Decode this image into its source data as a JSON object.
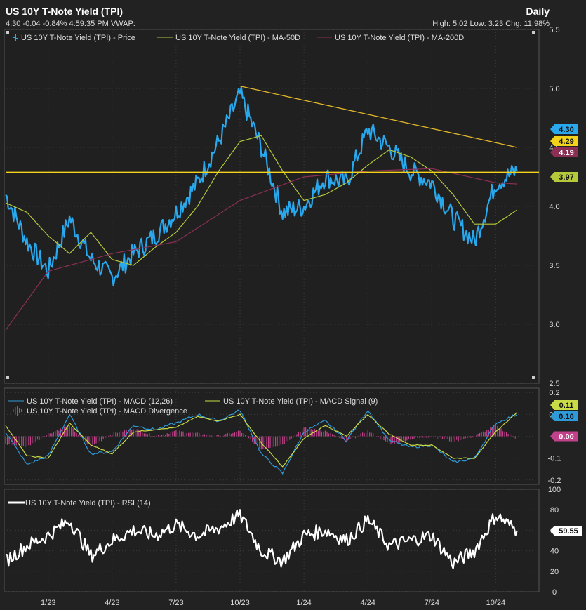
{
  "header": {
    "title": "US 10Y T-Note Yield (TPI)",
    "period": "Daily",
    "quote": "4.30 -0.04 -0.84% 4:59:35 PM VWAP:",
    "high_low_chg": "High: 5.02 Low: 3.23 Chg: 11.98%"
  },
  "colors": {
    "background": "#222222",
    "price": "#29a8ee",
    "ma50": "#b5c93b",
    "ma200": "#8b2f55",
    "trendline": "#e3b82a",
    "horizontal": "#f2d21b",
    "macd": "#2f9ad8",
    "macd_signal": "#c9db46",
    "macd_divergence": "#c2418b",
    "rsi": "#ffffff"
  },
  "chart_data": [
    {
      "type": "line",
      "name": "price-panel",
      "title": "US 10Y T-Note Yield (TPI)",
      "legend": [
        "US 10Y T-Note Yield (TPI) - Price",
        "US 10Y T-Note Yield (TPI) - MA-50D",
        "US 10Y T-Note Yield (TPI) - MA-200D"
      ],
      "x_ticks": [
        "1/23",
        "4/23",
        "7/23",
        "10/23",
        "1/24",
        "4/24",
        "7/24",
        "10/24"
      ],
      "y_ticks": [
        "5.5",
        "5.0",
        "4.5",
        "4.0",
        "3.5",
        "3.0",
        "2.5"
      ],
      "ylim": [
        2.5,
        5.5
      ],
      "series": [
        {
          "name": "US 10Y T-Note Yield (TPI) - Price",
          "points": [
            [
              "11/22",
              4.1
            ],
            [
              "12/22",
              3.7
            ],
            [
              "1/23",
              3.45
            ],
            [
              "2/23",
              3.9
            ],
            [
              "3/23",
              3.55
            ],
            [
              "4/23",
              3.4
            ],
            [
              "5/23",
              3.6
            ],
            [
              "6/23",
              3.75
            ],
            [
              "7/23",
              3.95
            ],
            [
              "8/23",
              4.2
            ],
            [
              "9/23",
              4.55
            ],
            [
              "10/23",
              4.95
            ],
            [
              "11/23",
              4.5
            ],
            [
              "12/23",
              3.95
            ],
            [
              "1/24",
              4.0
            ],
            [
              "2/24",
              4.25
            ],
            [
              "3/24",
              4.2
            ],
            [
              "4/24",
              4.65
            ],
            [
              "5/24",
              4.5
            ],
            [
              "6/24",
              4.3
            ],
            [
              "7/24",
              4.2
            ],
            [
              "8/24",
              3.9
            ],
            [
              "9/24",
              3.7
            ],
            [
              "10/24",
              4.2
            ],
            [
              "11/24",
              4.3
            ]
          ]
        },
        {
          "name": "US 10Y T-Note Yield (TPI) - MA-50D",
          "points": [
            [
              "11/22",
              4.03
            ],
            [
              "12/22",
              3.95
            ],
            [
              "1/23",
              3.75
            ],
            [
              "2/23",
              3.6
            ],
            [
              "3/23",
              3.78
            ],
            [
              "4/23",
              3.55
            ],
            [
              "5/23",
              3.5
            ],
            [
              "6/23",
              3.65
            ],
            [
              "7/23",
              3.78
            ],
            [
              "8/23",
              4.0
            ],
            [
              "9/23",
              4.3
            ],
            [
              "10/23",
              4.55
            ],
            [
              "11/23",
              4.6
            ],
            [
              "12/23",
              4.3
            ],
            [
              "1/24",
              4.05
            ],
            [
              "2/24",
              4.1
            ],
            [
              "3/24",
              4.2
            ],
            [
              "4/24",
              4.35
            ],
            [
              "5/24",
              4.48
            ],
            [
              "6/24",
              4.42
            ],
            [
              "7/24",
              4.3
            ],
            [
              "8/24",
              4.1
            ],
            [
              "9/24",
              3.85
            ],
            [
              "10/24",
              3.85
            ],
            [
              "11/24",
              3.97
            ]
          ]
        },
        {
          "name": "US 10Y T-Note Yield (TPI) - MA-200D",
          "points": [
            [
              "11/22",
              2.95
            ],
            [
              "1/23",
              3.45
            ],
            [
              "4/23",
              3.6
            ],
            [
              "7/23",
              3.7
            ],
            [
              "10/23",
              4.05
            ],
            [
              "1/24",
              4.25
            ],
            [
              "4/24",
              4.3
            ],
            [
              "7/24",
              4.32
            ],
            [
              "10/24",
              4.2
            ],
            [
              "11/24",
              4.19
            ]
          ]
        },
        {
          "name": "Trend line",
          "points": [
            [
              "10/23",
              5.02
            ],
            [
              "11/24",
              4.5
            ]
          ]
        },
        {
          "name": "Horizontal line",
          "points": [
            [
              "11/22",
              4.29
            ],
            [
              "11/24",
              4.29
            ]
          ]
        }
      ],
      "value_labels": [
        "4.30",
        "4.29",
        "4.19",
        "3.97"
      ]
    },
    {
      "type": "line",
      "name": "macd-panel",
      "legend": [
        "US 10Y T-Note Yield (TPI) - MACD (12,26)",
        "US 10Y T-Note Yield (TPI) - MACD Signal (9)",
        "US 10Y T-Note Yield (TPI) - MACD Divergence"
      ],
      "y_ticks": [
        "0.2",
        "0.1",
        "0",
        "-0.1",
        "-0.2"
      ],
      "ylim": [
        -0.22,
        0.22
      ],
      "series": [
        {
          "name": "US 10Y T-Note Yield (TPI) - MACD (12,26)",
          "points": [
            [
              "11/22",
              0.02
            ],
            [
              "12/22",
              -0.13
            ],
            [
              "1/23",
              -0.09
            ],
            [
              "2/23",
              0.1
            ],
            [
              "3/23",
              -0.08
            ],
            [
              "4/23",
              -0.07
            ],
            [
              "5/23",
              0.05
            ],
            [
              "6/23",
              0.03
            ],
            [
              "7/23",
              0.06
            ],
            [
              "8/23",
              0.1
            ],
            [
              "9/23",
              0.07
            ],
            [
              "10/23",
              0.12
            ],
            [
              "11/23",
              -0.08
            ],
            [
              "12/23",
              -0.17
            ],
            [
              "1/24",
              0.02
            ],
            [
              "2/24",
              0.07
            ],
            [
              "3/24",
              -0.02
            ],
            [
              "4/24",
              0.12
            ],
            [
              "5/24",
              -0.02
            ],
            [
              "6/24",
              -0.05
            ],
            [
              "7/24",
              -0.04
            ],
            [
              "8/24",
              -0.12
            ],
            [
              "9/24",
              -0.1
            ],
            [
              "10/24",
              0.06
            ],
            [
              "11/24",
              0.1
            ]
          ]
        },
        {
          "name": "US 10Y T-Note Yield (TPI) - MACD Signal (9)",
          "points": [
            [
              "11/22",
              0.05
            ],
            [
              "12/22",
              -0.09
            ],
            [
              "1/23",
              -0.1
            ],
            [
              "2/23",
              0.06
            ],
            [
              "3/23",
              -0.04
            ],
            [
              "4/23",
              -0.08
            ],
            [
              "5/23",
              0.02
            ],
            [
              "6/23",
              0.03
            ],
            [
              "7/23",
              0.04
            ],
            [
              "8/23",
              0.09
            ],
            [
              "9/23",
              0.07
            ],
            [
              "10/23",
              0.1
            ],
            [
              "11/23",
              -0.03
            ],
            [
              "12/23",
              -0.14
            ],
            [
              "1/24",
              -0.01
            ],
            [
              "2/24",
              0.05
            ],
            [
              "3/24",
              0.0
            ],
            [
              "4/24",
              0.1
            ],
            [
              "5/24",
              0.01
            ],
            [
              "6/24",
              -0.04
            ],
            [
              "7/24",
              -0.04
            ],
            [
              "8/24",
              -0.1
            ],
            [
              "9/24",
              -0.1
            ],
            [
              "10/24",
              0.02
            ],
            [
              "11/24",
              0.11
            ]
          ]
        }
      ],
      "value_labels": [
        "0.11",
        "0.10",
        "0.00"
      ]
    },
    {
      "type": "line",
      "name": "rsi-panel",
      "legend": [
        "US 10Y T-Note Yield (TPI) - RSI (14)"
      ],
      "y_ticks": [
        "100",
        "80",
        "60",
        "40",
        "20",
        "0"
      ],
      "ylim": [
        0,
        100
      ],
      "series": [
        {
          "name": "US 10Y T-Note Yield (TPI) - RSI (14)",
          "points": [
            [
              "11/22",
              30
            ],
            [
              "12/22",
              45
            ],
            [
              "1/23",
              55
            ],
            [
              "2/23",
              70
            ],
            [
              "3/23",
              35
            ],
            [
              "4/23",
              50
            ],
            [
              "5/23",
              60
            ],
            [
              "6/23",
              55
            ],
            [
              "7/23",
              65
            ],
            [
              "8/23",
              55
            ],
            [
              "9/23",
              62
            ],
            [
              "10/23",
              75
            ],
            [
              "11/23",
              40
            ],
            [
              "12/23",
              30
            ],
            [
              "1/24",
              55
            ],
            [
              "2/24",
              60
            ],
            [
              "3/24",
              50
            ],
            [
              "4/24",
              70
            ],
            [
              "5/24",
              45
            ],
            [
              "6/24",
              50
            ],
            [
              "7/24",
              55
            ],
            [
              "8/24",
              28
            ],
            [
              "9/24",
              40
            ],
            [
              "10/24",
              75
            ],
            [
              "11/24",
              59.55
            ]
          ]
        }
      ],
      "value_labels": [
        "59.55"
      ]
    }
  ]
}
